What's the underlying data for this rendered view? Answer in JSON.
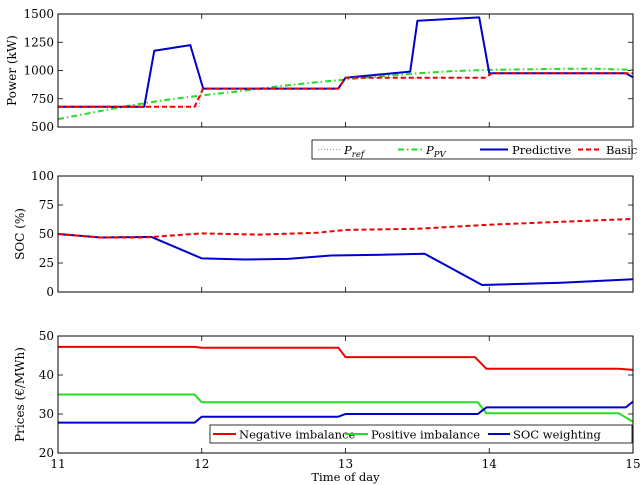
{
  "chart_data": [
    {
      "type": "line",
      "ylabel": "Power (kW)",
      "xlim": [
        11,
        15
      ],
      "ylim": [
        500,
        1500
      ],
      "xticks": [
        11,
        12,
        13,
        14,
        15
      ],
      "yticks": [
        500,
        750,
        1000,
        1250,
        1500
      ],
      "legend_position": "bottom-right, below axes",
      "series": [
        {
          "name": "P_ref",
          "legend_text": "P",
          "legend_sub": "ref",
          "color": "#999999",
          "style": "dotted",
          "x": [
            11,
            11.58,
            11.62,
            11.62,
            11.93,
            11.98,
            12,
            12.95,
            13,
            13.98,
            14,
            15
          ],
          "y": [
            680,
            680,
            680,
            680,
            680,
            680,
            840,
            840,
            935,
            935,
            975,
            975
          ]
        },
        {
          "name": "P_PV",
          "legend_text": "P",
          "legend_sub": "PV",
          "color": "#22dd22",
          "style": "dashdot",
          "x": [
            11,
            11.25,
            11.5,
            11.75,
            12,
            12.25,
            12.5,
            12.75,
            13,
            13.25,
            13.5,
            13.75,
            14,
            14.25,
            14.5,
            14.75,
            15
          ],
          "y": [
            570,
            630,
            690,
            740,
            780,
            815,
            855,
            890,
            920,
            950,
            975,
            995,
            1005,
            1010,
            1015,
            1015,
            1005
          ]
        },
        {
          "name": "Predictive",
          "legend_text": "Predictive",
          "color": "#0000cc",
          "style": "solid",
          "x": [
            11,
            11.6,
            11.67,
            11.92,
            12.01,
            12.95,
            13.0,
            13.45,
            13.5,
            13.93,
            14.0,
            14.95,
            15
          ],
          "y": [
            680,
            680,
            1175,
            1225,
            840,
            840,
            935,
            990,
            1440,
            1470,
            975,
            975,
            940
          ]
        },
        {
          "name": "Basic",
          "legend_text": "Basic",
          "color": "#ee0000",
          "style": "dashed",
          "x": [
            11,
            11.95,
            12.01,
            12.95,
            13.0,
            13.97,
            14.02,
            15
          ],
          "y": [
            680,
            680,
            840,
            840,
            935,
            935,
            975,
            975
          ]
        }
      ]
    },
    {
      "type": "line",
      "ylabel": "SOC (%)",
      "xlim": [
        11,
        15
      ],
      "ylim": [
        0,
        100
      ],
      "xticks": [
        11,
        12,
        13,
        14,
        15
      ],
      "yticks": [
        0,
        25,
        50,
        75,
        100
      ],
      "series": [
        {
          "name": "Predictive",
          "color": "#0000cc",
          "style": "solid",
          "x": [
            11,
            11.3,
            11.65,
            12.0,
            12.3,
            12.6,
            12.9,
            13.2,
            13.55,
            13.95,
            14.5,
            15
          ],
          "y": [
            50,
            47,
            47.5,
            29,
            28,
            28.5,
            31.5,
            32,
            33,
            6,
            8,
            11
          ]
        },
        {
          "name": "Basic",
          "color": "#ee0000",
          "style": "dashed",
          "x": [
            11,
            11.3,
            11.6,
            12.0,
            12.4,
            12.8,
            13.0,
            13.5,
            14.0,
            14.5,
            15
          ],
          "y": [
            50,
            47,
            47,
            50.5,
            49.5,
            51,
            53.5,
            54.5,
            58,
            60.5,
            63
          ]
        }
      ]
    },
    {
      "type": "line",
      "ylabel": "Prices (€/MWh)",
      "xlabel": "Time of day",
      "xlim": [
        11,
        15
      ],
      "ylim": [
        20,
        50
      ],
      "xticks": [
        11,
        12,
        13,
        14,
        15
      ],
      "yticks": [
        20,
        30,
        40,
        50
      ],
      "legend_position": "lower-right, inside axes",
      "series": [
        {
          "name": "Negative imbalance",
          "color": "#ee0000",
          "style": "solid",
          "x": [
            11,
            11.95,
            12.0,
            12.95,
            13.0,
            13.9,
            13.98,
            14.9,
            15
          ],
          "y": [
            47.2,
            47.2,
            47.0,
            47.0,
            44.6,
            44.6,
            41.6,
            41.6,
            41.3
          ]
        },
        {
          "name": "Positive imbalance",
          "color": "#22dd22",
          "style": "solid",
          "x": [
            11,
            11.95,
            12.0,
            13.92,
            13.98,
            14.9,
            15
          ],
          "y": [
            35.0,
            35.0,
            33.0,
            33.0,
            30.2,
            30.2,
            28.0
          ]
        },
        {
          "name": "SOC weighting",
          "color": "#0000cc",
          "style": "solid",
          "x": [
            11,
            11.95,
            12.0,
            12.95,
            13.0,
            13.92,
            13.98,
            14.95,
            15
          ],
          "y": [
            27.8,
            27.8,
            29.3,
            29.3,
            30.0,
            30.0,
            31.7,
            31.7,
            33.2
          ]
        }
      ]
    }
  ]
}
